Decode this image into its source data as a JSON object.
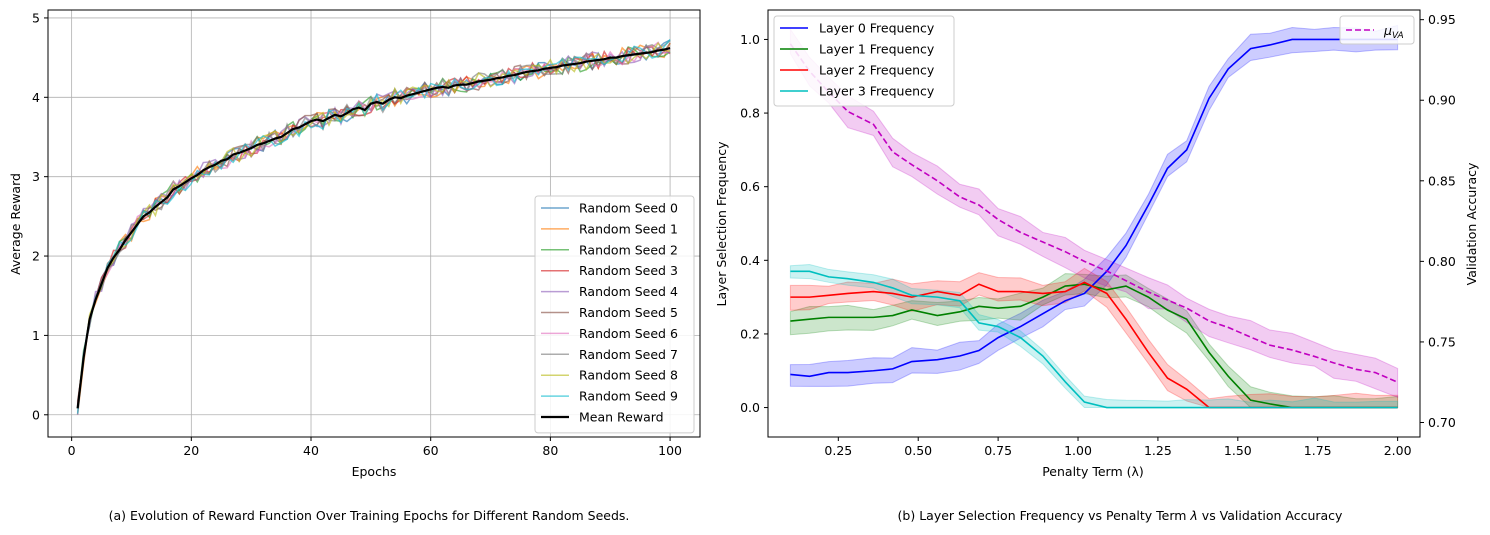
{
  "captions": {
    "left": "(a) Evolution of Reward Function Over Training Epochs for Different Random Seeds.",
    "right_prefix": "(b) Layer Selection Frequency vs Penalty Term ",
    "right_lambda": "λ",
    "right_suffix": " vs Validation Accuracy"
  },
  "chart_data": [
    {
      "type": "line",
      "title": "",
      "xlabel": "Epochs",
      "ylabel": "Average Reward",
      "xlim": [
        -3.95,
        105
      ],
      "ylim": [
        -0.28,
        5.1
      ],
      "xticks": [
        0,
        20,
        40,
        60,
        80,
        100
      ],
      "yticks": [
        0,
        1,
        2,
        3,
        4,
        5
      ],
      "grid": true,
      "legend_position": "lower-right",
      "curve_model": "reward ≈ a·ln(epoch) + noise",
      "x": [
        1,
        2,
        3,
        4,
        5,
        6,
        7,
        8,
        9,
        10,
        11,
        12,
        13,
        14,
        15,
        16,
        17,
        18,
        19,
        20,
        21,
        22,
        23,
        24,
        25,
        26,
        27,
        28,
        29,
        30,
        31,
        32,
        33,
        34,
        35,
        36,
        37,
        38,
        39,
        40,
        41,
        42,
        43,
        44,
        45,
        46,
        47,
        48,
        49,
        50,
        51,
        52,
        53,
        54,
        55,
        56,
        57,
        58,
        59,
        60,
        61,
        62,
        63,
        64,
        65,
        66,
        67,
        68,
        69,
        70,
        71,
        72,
        73,
        74,
        75,
        76,
        77,
        78,
        79,
        80,
        81,
        82,
        83,
        84,
        85,
        86,
        87,
        88,
        89,
        90,
        91,
        92,
        93,
        94,
        95,
        96,
        97,
        98,
        99,
        100
      ],
      "series": [
        {
          "name": "Random Seed 0",
          "color": "#1f77b4",
          "noise_seed": 11
        },
        {
          "name": "Random Seed 1",
          "color": "#ff7f0e",
          "noise_seed": 23
        },
        {
          "name": "Random Seed 2",
          "color": "#2ca02c",
          "noise_seed": 37
        },
        {
          "name": "Random Seed 3",
          "color": "#d62728",
          "noise_seed": 41
        },
        {
          "name": "Random Seed 4",
          "color": "#9467bd",
          "noise_seed": 53
        },
        {
          "name": "Random Seed 5",
          "color": "#8c564b",
          "noise_seed": 67
        },
        {
          "name": "Random Seed 6",
          "color": "#e377c2",
          "noise_seed": 71
        },
        {
          "name": "Random Seed 7",
          "color": "#7f7f7f",
          "noise_seed": 83
        },
        {
          "name": "Random Seed 8",
          "color": "#bcbd22",
          "noise_seed": 97
        },
        {
          "name": "Random Seed 9",
          "color": "#17becf",
          "noise_seed": 101
        },
        {
          "name": "Mean Reward",
          "color": "#000000",
          "mean": [
            0.08,
            0.72,
            1.2,
            1.45,
            1.65,
            1.85,
            1.98,
            2.08,
            2.2,
            2.3,
            2.4,
            2.5,
            2.55,
            2.62,
            2.68,
            2.74,
            2.84,
            2.88,
            2.93,
            2.98,
            3.02,
            3.08,
            3.12,
            3.15,
            3.2,
            3.22,
            3.28,
            3.3,
            3.33,
            3.36,
            3.4,
            3.42,
            3.45,
            3.48,
            3.5,
            3.55,
            3.6,
            3.62,
            3.66,
            3.7,
            3.72,
            3.7,
            3.74,
            3.78,
            3.76,
            3.8,
            3.85,
            3.87,
            3.84,
            3.92,
            3.94,
            3.92,
            3.97,
            4.0,
            3.99,
            4.02,
            4.04,
            4.06,
            4.08,
            4.1,
            4.12,
            4.13,
            4.12,
            4.15,
            4.16,
            4.16,
            4.18,
            4.2,
            4.21,
            4.22,
            4.24,
            4.25,
            4.27,
            4.28,
            4.3,
            4.32,
            4.33,
            4.34,
            4.36,
            4.37,
            4.38,
            4.4,
            4.41,
            4.42,
            4.43,
            4.45,
            4.46,
            4.47,
            4.48,
            4.5,
            4.5,
            4.52,
            4.53,
            4.54,
            4.55,
            4.56,
            4.57,
            4.59,
            4.6,
            4.62
          ]
        }
      ]
    },
    {
      "type": "line",
      "title": "",
      "xlabel": "Penalty Term (λ)",
      "ylabel": "Layer Selection Frequency",
      "y2label": "Validation Accuracy",
      "xlim": [
        0.03,
        2.07
      ],
      "ylim": [
        -0.08,
        1.08
      ],
      "y2lim": [
        0.691,
        0.956
      ],
      "xticks": [
        0.25,
        0.5,
        0.75,
        1.0,
        1.25,
        1.5,
        1.75,
        2.0
      ],
      "xtick_labels": [
        "0.25",
        "0.50",
        "0.75",
        "1.00",
        "1.25",
        "1.50",
        "1.75",
        "2.00"
      ],
      "yticks": [
        0.0,
        0.2,
        0.4,
        0.6,
        0.8,
        1.0
      ],
      "ytick_labels": [
        "0.0",
        "0.2",
        "0.4",
        "0.6",
        "0.8",
        "1.0"
      ],
      "y2ticks": [
        0.7,
        0.75,
        0.8,
        0.85,
        0.9,
        0.95
      ],
      "y2tick_labels": [
        "0.70",
        "0.75",
        "0.80",
        "0.85",
        "0.90",
        "0.95"
      ],
      "grid": false,
      "legend_position": "upper-left",
      "legend2_position": "upper-right",
      "x": [
        0.1,
        0.167,
        0.233,
        0.3,
        0.367,
        0.433,
        0.5,
        0.567,
        0.633,
        0.7,
        0.767,
        0.833,
        0.9,
        0.967,
        1.033,
        1.1,
        1.167,
        1.233,
        1.3,
        1.367,
        1.433,
        1.5,
        1.567,
        1.633,
        1.7,
        1.767,
        1.833,
        1.9,
        1.967,
        2.0
      ],
      "series": [
        {
          "name": "Layer 0 Frequency",
          "axis": "left",
          "color": "#0000ff",
          "points": [
            [
              0.1,
              0.09
            ],
            [
              0.16,
              0.085
            ],
            [
              0.22,
              0.095
            ],
            [
              0.28,
              0.095
            ],
            [
              0.36,
              0.1
            ],
            [
              0.42,
              0.105
            ],
            [
              0.48,
              0.125
            ],
            [
              0.56,
              0.13
            ],
            [
              0.63,
              0.14
            ],
            [
              0.69,
              0.155
            ],
            [
              0.75,
              0.19
            ],
            [
              0.82,
              0.22
            ],
            [
              0.89,
              0.255
            ],
            [
              0.96,
              0.29
            ],
            [
              1.02,
              0.31
            ],
            [
              1.09,
              0.37
            ],
            [
              1.15,
              0.44
            ],
            [
              1.22,
              0.55
            ],
            [
              1.28,
              0.65
            ],
            [
              1.34,
              0.7
            ],
            [
              1.41,
              0.84
            ],
            [
              1.47,
              0.92
            ],
            [
              1.54,
              0.975
            ],
            [
              1.6,
              0.985
            ],
            [
              1.67,
              1.0
            ],
            [
              1.74,
              1.0
            ],
            [
              1.8,
              1.0
            ],
            [
              1.87,
              1.0
            ],
            [
              1.93,
              1.0
            ],
            [
              2.0,
              1.0
            ]
          ],
          "band": 0.03
        },
        {
          "name": "Layer 1 Frequency",
          "axis": "left",
          "color": "#008000",
          "points": [
            [
              0.1,
              0.235
            ],
            [
              0.16,
              0.24
            ],
            [
              0.22,
              0.245
            ],
            [
              0.28,
              0.245
            ],
            [
              0.36,
              0.245
            ],
            [
              0.42,
              0.25
            ],
            [
              0.48,
              0.265
            ],
            [
              0.56,
              0.25
            ],
            [
              0.63,
              0.26
            ],
            [
              0.69,
              0.275
            ],
            [
              0.75,
              0.27
            ],
            [
              0.82,
              0.275
            ],
            [
              0.89,
              0.3
            ],
            [
              0.96,
              0.33
            ],
            [
              1.02,
              0.335
            ],
            [
              1.09,
              0.32
            ],
            [
              1.15,
              0.33
            ],
            [
              1.22,
              0.3
            ],
            [
              1.28,
              0.265
            ],
            [
              1.34,
              0.24
            ],
            [
              1.41,
              0.15
            ],
            [
              1.47,
              0.085
            ],
            [
              1.54,
              0.02
            ],
            [
              1.6,
              0.01
            ],
            [
              1.67,
              0.0
            ],
            [
              1.74,
              0.0
            ],
            [
              1.8,
              0.0
            ],
            [
              1.87,
              0.0
            ],
            [
              1.93,
              0.0
            ],
            [
              2.0,
              0.0
            ]
          ],
          "band": 0.03
        },
        {
          "name": "Layer 2 Frequency",
          "axis": "left",
          "color": "#ff0000",
          "points": [
            [
              0.1,
              0.3
            ],
            [
              0.16,
              0.3
            ],
            [
              0.22,
              0.305
            ],
            [
              0.28,
              0.31
            ],
            [
              0.36,
              0.315
            ],
            [
              0.42,
              0.31
            ],
            [
              0.48,
              0.3
            ],
            [
              0.56,
              0.315
            ],
            [
              0.63,
              0.305
            ],
            [
              0.69,
              0.335
            ],
            [
              0.75,
              0.315
            ],
            [
              0.82,
              0.315
            ],
            [
              0.89,
              0.31
            ],
            [
              0.96,
              0.315
            ],
            [
              1.02,
              0.34
            ],
            [
              1.09,
              0.31
            ],
            [
              1.15,
              0.24
            ],
            [
              1.22,
              0.15
            ],
            [
              1.28,
              0.08
            ],
            [
              1.34,
              0.05
            ],
            [
              1.41,
              0.0
            ],
            [
              1.47,
              0.0
            ],
            [
              1.54,
              0.0
            ],
            [
              1.6,
              0.0
            ],
            [
              1.67,
              0.0
            ],
            [
              1.74,
              0.0
            ],
            [
              1.8,
              0.0
            ],
            [
              1.87,
              0.0
            ],
            [
              1.93,
              0.0
            ],
            [
              2.0,
              0.0
            ]
          ],
          "band": 0.03
        },
        {
          "name": "Layer 3 Frequency",
          "axis": "left",
          "color": "#00bfbf",
          "points": [
            [
              0.1,
              0.37
            ],
            [
              0.16,
              0.37
            ],
            [
              0.22,
              0.355
            ],
            [
              0.28,
              0.35
            ],
            [
              0.36,
              0.34
            ],
            [
              0.42,
              0.325
            ],
            [
              0.48,
              0.305
            ],
            [
              0.56,
              0.3
            ],
            [
              0.63,
              0.29
            ],
            [
              0.69,
              0.23
            ],
            [
              0.75,
              0.22
            ],
            [
              0.82,
              0.19
            ],
            [
              0.89,
              0.14
            ],
            [
              0.96,
              0.07
            ],
            [
              1.02,
              0.015
            ],
            [
              1.09,
              0.0
            ],
            [
              1.15,
              0.0
            ],
            [
              1.22,
              0.0
            ],
            [
              1.28,
              0.0
            ],
            [
              1.34,
              0.0
            ],
            [
              1.41,
              0.0
            ],
            [
              1.47,
              0.0
            ],
            [
              1.54,
              0.0
            ],
            [
              1.6,
              0.0
            ],
            [
              1.67,
              0.0
            ],
            [
              1.74,
              0.0
            ],
            [
              1.8,
              0.0
            ],
            [
              1.87,
              0.0
            ],
            [
              1.93,
              0.0
            ],
            [
              2.0,
              0.0
            ]
          ],
          "band": 0.02
        },
        {
          "name": "μ_VA",
          "axis": "right",
          "color": "#c000c0",
          "dashed": true,
          "points": [
            [
              0.1,
              0.935
            ],
            [
              0.16,
              0.918
            ],
            [
              0.22,
              0.905
            ],
            [
              0.28,
              0.893
            ],
            [
              0.36,
              0.885
            ],
            [
              0.42,
              0.868
            ],
            [
              0.48,
              0.86
            ],
            [
              0.56,
              0.85
            ],
            [
              0.63,
              0.84
            ],
            [
              0.69,
              0.835
            ],
            [
              0.75,
              0.826
            ],
            [
              0.82,
              0.818
            ],
            [
              0.89,
              0.812
            ],
            [
              0.96,
              0.806
            ],
            [
              1.02,
              0.8
            ],
            [
              1.09,
              0.794
            ],
            [
              1.15,
              0.788
            ],
            [
              1.22,
              0.781
            ],
            [
              1.28,
              0.776
            ],
            [
              1.34,
              0.771
            ],
            [
              1.41,
              0.763
            ],
            [
              1.47,
              0.759
            ],
            [
              1.54,
              0.753
            ],
            [
              1.6,
              0.748
            ],
            [
              1.67,
              0.745
            ],
            [
              1.74,
              0.741
            ],
            [
              1.8,
              0.737
            ],
            [
              1.87,
              0.733
            ],
            [
              1.93,
              0.731
            ],
            [
              2.0,
              0.725
            ]
          ],
          "band": 0.008
        }
      ]
    }
  ]
}
